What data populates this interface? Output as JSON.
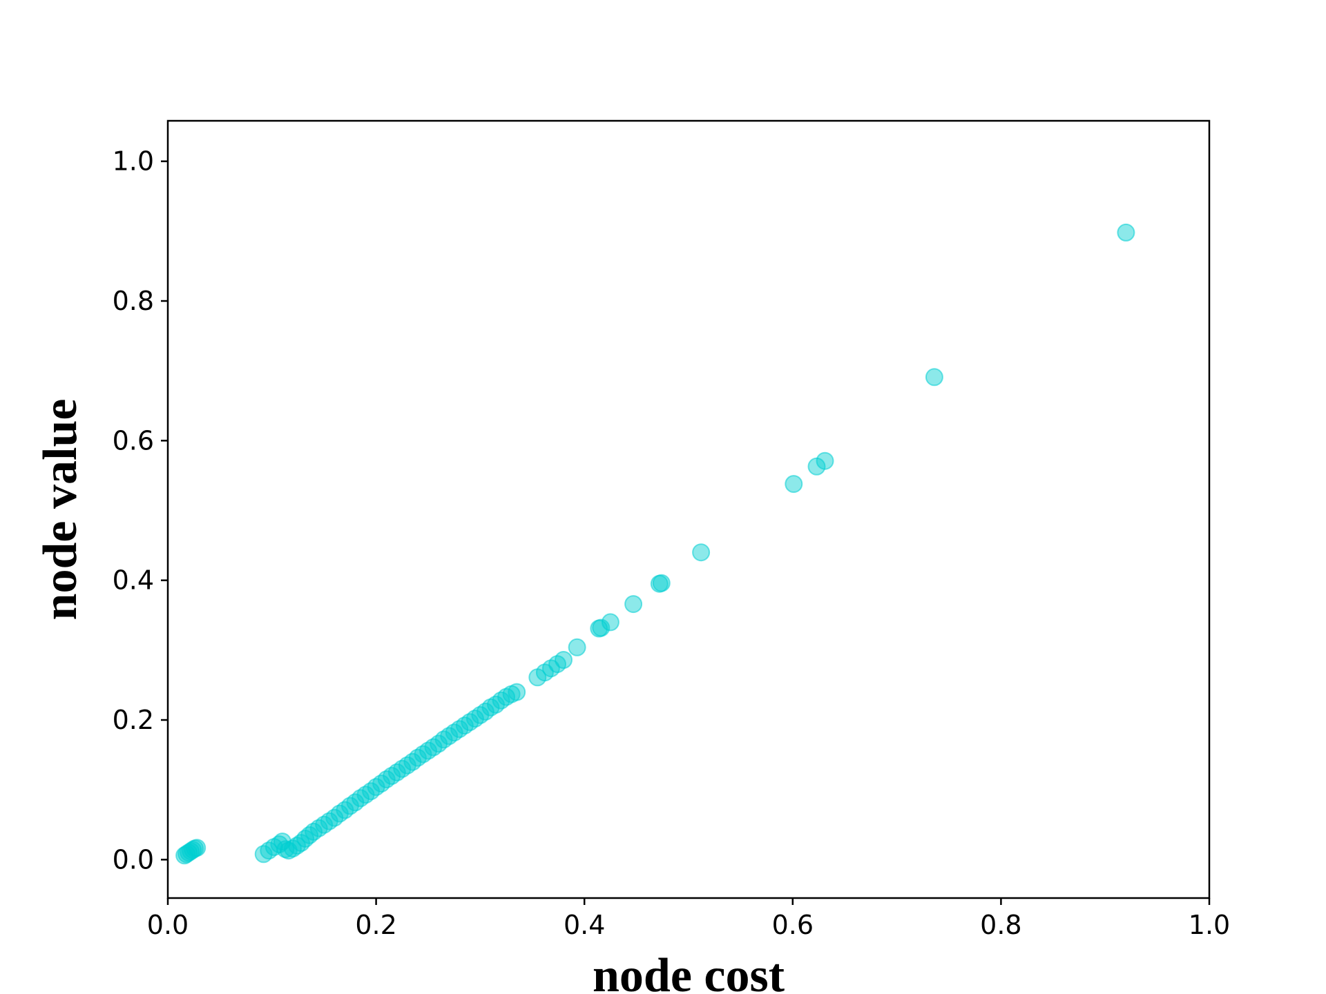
{
  "chart_data": {
    "type": "scatter",
    "title": "",
    "xlabel": "node cost",
    "ylabel": "node value",
    "xlim": [
      0.0,
      1.0
    ],
    "ylim": [
      -0.055,
      1.058
    ],
    "xticks": [
      "0.0",
      "0.2",
      "0.4",
      "0.6",
      "0.8",
      "1.0"
    ],
    "yticks": [
      "0.0",
      "0.2",
      "0.4",
      "0.6",
      "0.8",
      "1.0"
    ],
    "grid": false,
    "legend": "none",
    "marker_color": "#00CED1",
    "series": [
      {
        "x": [
          0.016,
          0.018,
          0.02,
          0.022,
          0.024,
          0.026,
          0.028,
          0.092,
          0.097,
          0.102,
          0.107,
          0.11,
          0.113,
          0.116,
          0.12,
          0.124,
          0.128,
          0.132,
          0.136,
          0.14,
          0.145,
          0.15,
          0.155,
          0.16,
          0.165,
          0.17,
          0.175,
          0.18,
          0.185,
          0.19,
          0.195,
          0.2,
          0.205,
          0.21,
          0.215,
          0.22,
          0.225,
          0.23,
          0.235,
          0.24,
          0.245,
          0.25,
          0.255,
          0.26,
          0.265,
          0.27,
          0.275,
          0.28,
          0.285,
          0.29,
          0.295,
          0.3,
          0.305,
          0.31,
          0.315,
          0.32,
          0.325,
          0.33,
          0.335,
          0.355,
          0.362,
          0.368,
          0.374,
          0.38,
          0.393,
          0.414,
          0.416,
          0.425,
          0.447,
          0.472,
          0.474,
          0.512,
          0.601,
          0.623,
          0.631,
          0.736,
          0.92
        ],
        "y": [
          0.006,
          0.008,
          0.01,
          0.012,
          0.014,
          0.016,
          0.017,
          0.008,
          0.013,
          0.018,
          0.022,
          0.026,
          0.015,
          0.013,
          0.016,
          0.02,
          0.024,
          0.03,
          0.035,
          0.04,
          0.045,
          0.05,
          0.055,
          0.06,
          0.066,
          0.071,
          0.077,
          0.082,
          0.088,
          0.093,
          0.098,
          0.104,
          0.109,
          0.115,
          0.12,
          0.125,
          0.13,
          0.135,
          0.14,
          0.146,
          0.151,
          0.156,
          0.161,
          0.166,
          0.172,
          0.177,
          0.182,
          0.187,
          0.192,
          0.197,
          0.202,
          0.207,
          0.212,
          0.218,
          0.222,
          0.228,
          0.233,
          0.237,
          0.24,
          0.261,
          0.268,
          0.274,
          0.28,
          0.286,
          0.304,
          0.331,
          0.332,
          0.34,
          0.366,
          0.395,
          0.396,
          0.44,
          0.538,
          0.563,
          0.571,
          0.691,
          0.898
        ]
      }
    ]
  }
}
